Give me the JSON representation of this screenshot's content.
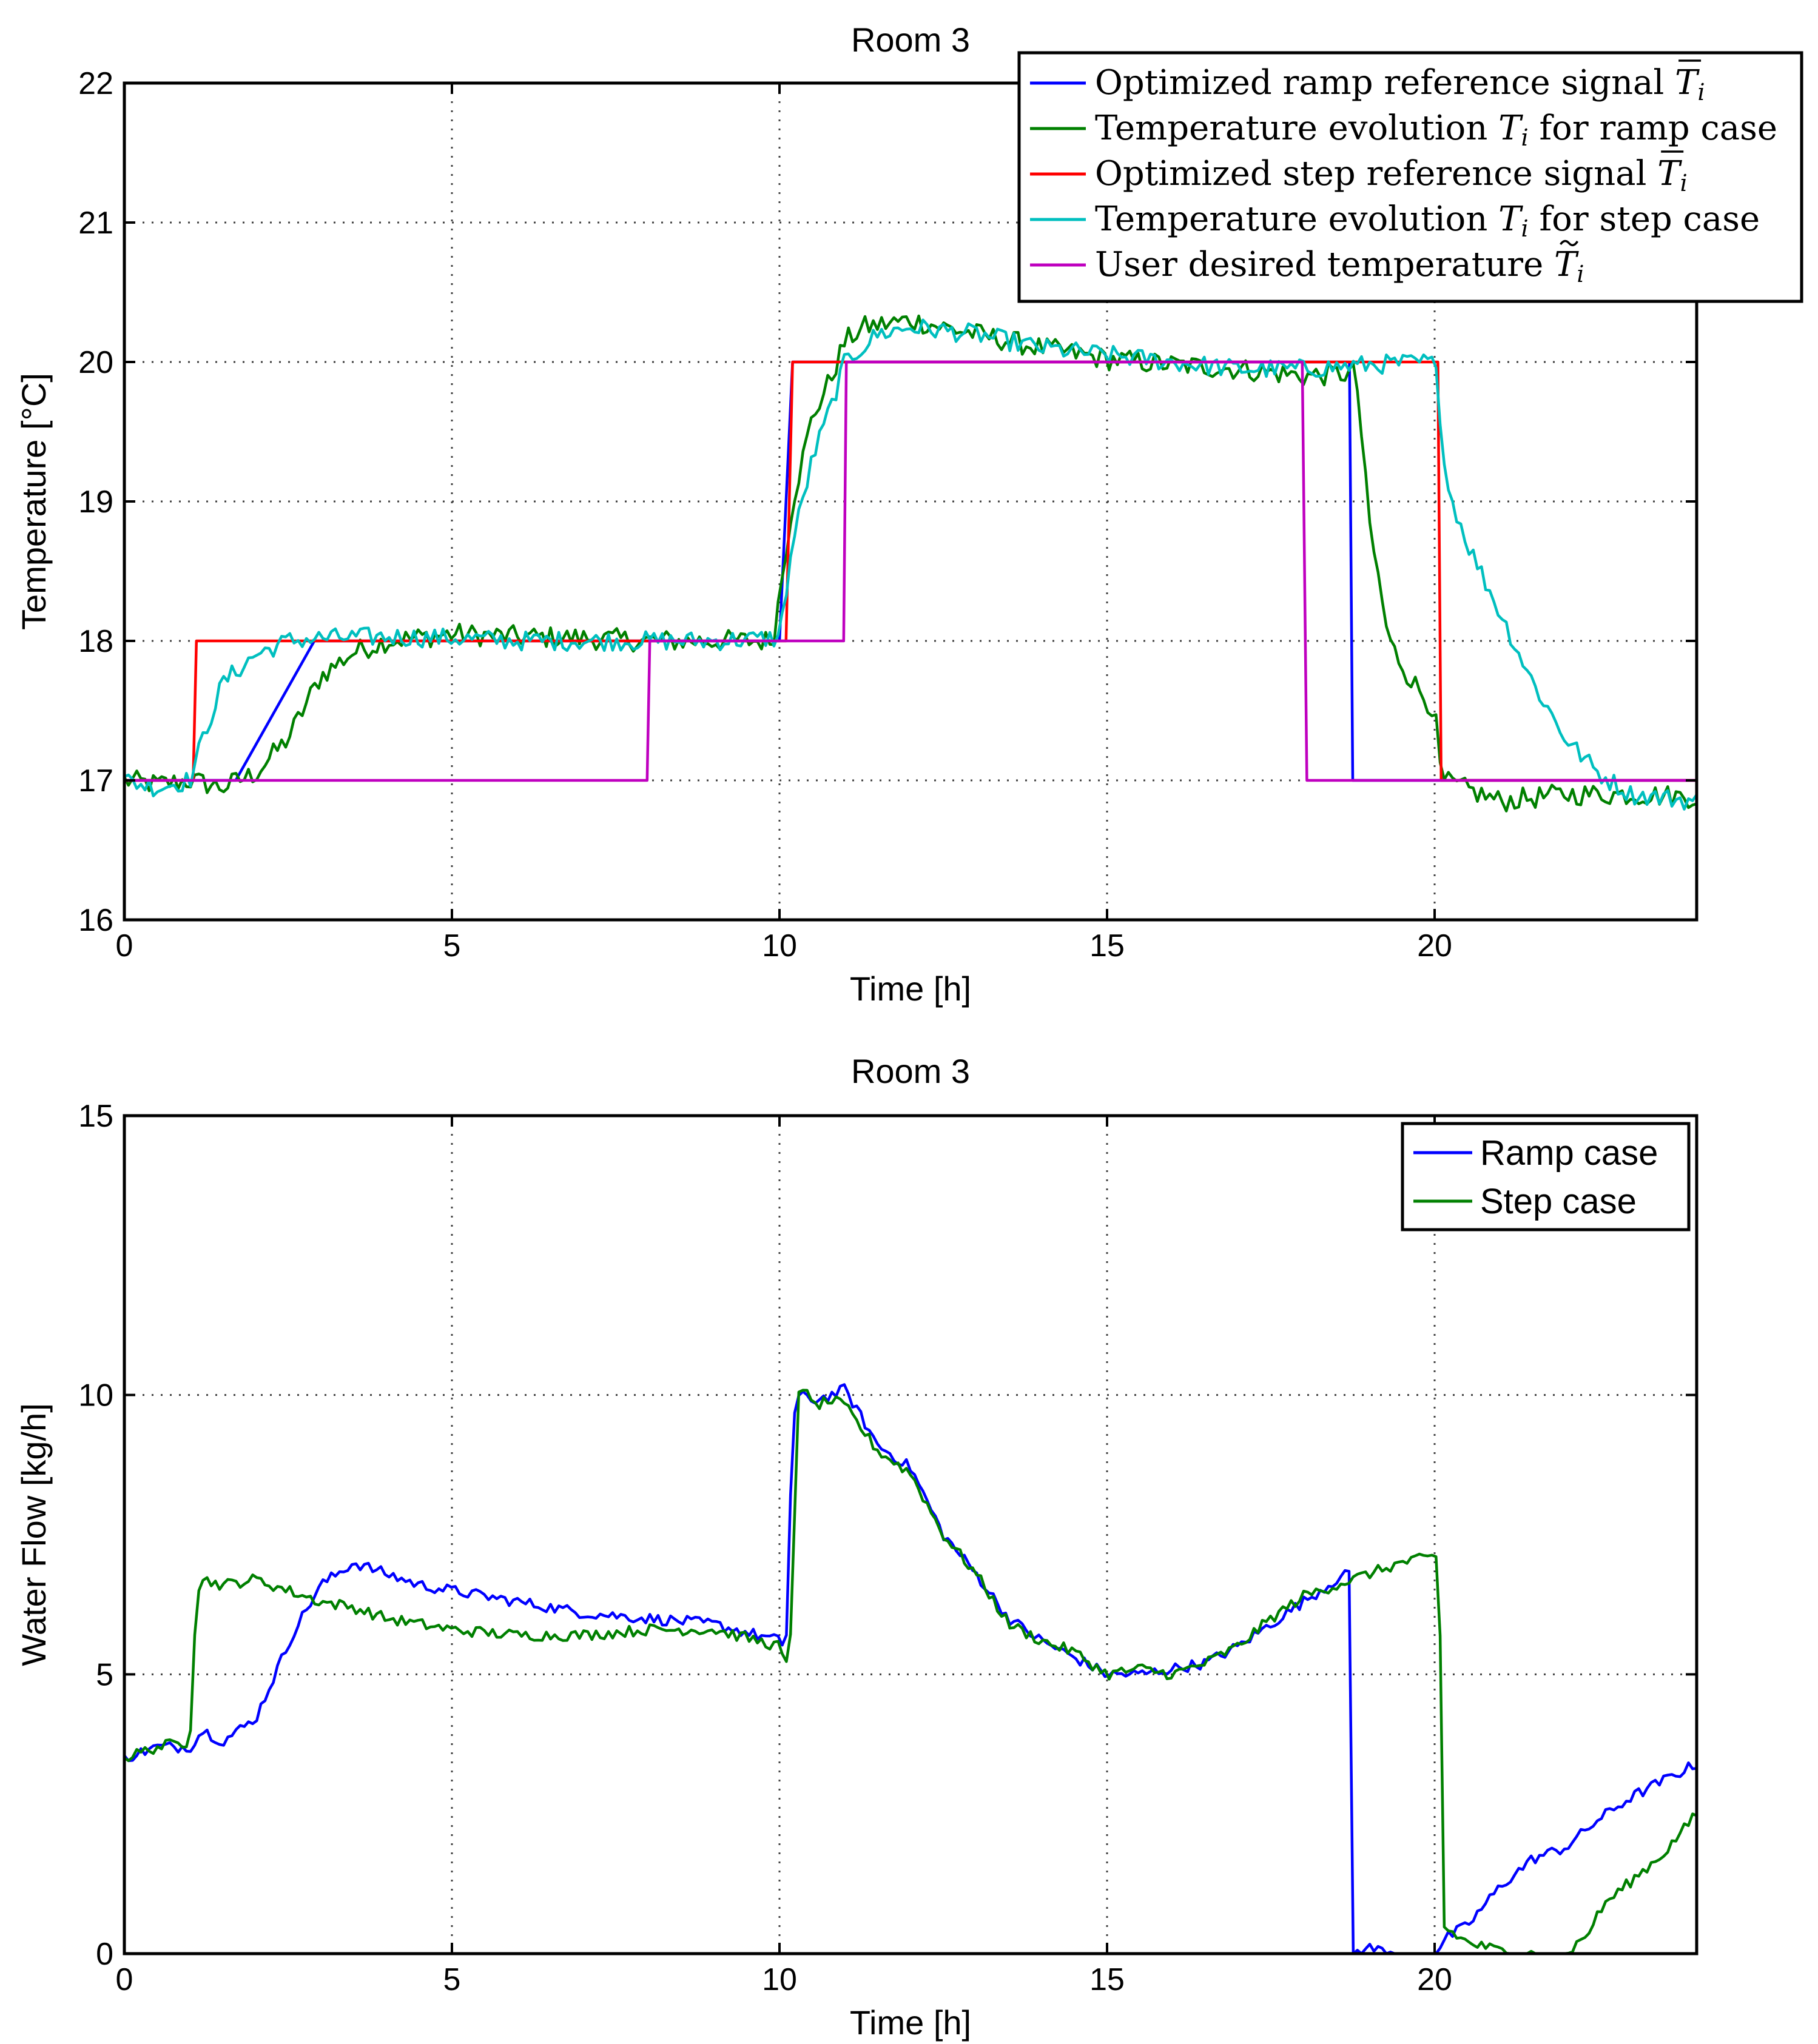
{
  "chart_data": [
    {
      "type": "line",
      "title": "Room 3",
      "xlabel": "Time [h]",
      "ylabel": "Temperature [°C]",
      "xlim": [
        0,
        24
      ],
      "ylim": [
        16,
        22
      ],
      "xticks": [
        0,
        5,
        10,
        15,
        20
      ],
      "yticks": [
        16,
        17,
        18,
        19,
        20,
        21,
        22
      ],
      "grid": true,
      "legend_position": "top-right",
      "series": [
        {
          "name": "Optimized ramp reference signal T̄ᵢ",
          "label_parts": [
            "Optimized ramp reference signal ",
            "T",
            "i"
          ],
          "label_accent": "bar",
          "color": "#0000ff",
          "noise": 0,
          "x": [
            0,
            1.7,
            2.9,
            10,
            10.2,
            18.7,
            18.75,
            24
          ],
          "y": [
            17,
            17,
            18,
            18,
            20,
            20,
            17,
            17
          ]
        },
        {
          "name": "Temperature evolution Tᵢ for ramp case",
          "label_parts": [
            "Temperature evolution ",
            "T",
            "i",
            " for ramp case"
          ],
          "label_accent": "",
          "color": "#008000",
          "noise": 0.08,
          "x": [
            0,
            0.5,
            1,
            1.5,
            2,
            2.5,
            3,
            3.5,
            4,
            5,
            6,
            7,
            8,
            9,
            9.9,
            10.2,
            10.5,
            10.8,
            11,
            11.3,
            12,
            13,
            14,
            15,
            16,
            17,
            18,
            18.8,
            19,
            19.3,
            19.6,
            20,
            20.1,
            21,
            22,
            23,
            24
          ],
          "y": [
            17,
            16.97,
            17,
            16.95,
            17.05,
            17.3,
            17.75,
            17.92,
            18,
            18.05,
            18.03,
            18.02,
            18,
            18,
            18,
            19.0,
            19.6,
            19.9,
            20.15,
            20.25,
            20.3,
            20.2,
            20.1,
            20.02,
            19.98,
            19.95,
            19.9,
            19.92,
            18.85,
            18.0,
            17.75,
            17.5,
            17.0,
            16.85,
            16.9,
            16.9,
            16.88
          ]
        },
        {
          "name": "Optimized step reference signal T̄ᵢ",
          "label_parts": [
            "Optimized step reference signal ",
            "T",
            "i"
          ],
          "label_accent": "bar",
          "color": "#ff0000",
          "noise": 0,
          "x": [
            0,
            1.05,
            1.1,
            10.1,
            10.2,
            20.05,
            20.1,
            24
          ],
          "y": [
            17,
            17,
            18,
            18,
            20,
            20,
            17,
            17
          ]
        },
        {
          "name": "Temperature evolution Tᵢ for step case",
          "label_parts": [
            "Temperature evolution ",
            "T",
            "i",
            " for step case"
          ],
          "label_accent": "",
          "color": "#00bfbf",
          "noise": 0.07,
          "x": [
            0,
            0.5,
            1,
            1.2,
            1.5,
            2,
            2.5,
            3,
            4,
            5,
            6,
            7,
            8,
            9,
            10,
            10.2,
            10.5,
            10.8,
            11,
            11.5,
            12,
            13,
            14,
            15,
            16,
            17,
            18,
            19,
            20,
            20.2,
            20.5,
            21,
            21.5,
            22,
            22.5,
            23,
            24
          ],
          "y": [
            17,
            16.95,
            17,
            17.3,
            17.7,
            17.9,
            18,
            18.02,
            18.03,
            18.02,
            18,
            18,
            18,
            18,
            18.02,
            18.7,
            19.3,
            19.7,
            20.0,
            20.2,
            20.25,
            20.2,
            20.1,
            20.05,
            20.0,
            19.95,
            19.95,
            19.98,
            20.0,
            19.1,
            18.7,
            18.2,
            17.7,
            17.3,
            17.05,
            16.9,
            16.85
          ]
        },
        {
          "name": "User desired temperature T̃ᵢ",
          "label_parts": [
            "User desired temperature ",
            "T",
            "i"
          ],
          "label_accent": "tilde",
          "color": "#bf00bf",
          "noise": 0,
          "x": [
            0,
            7.98,
            8.02,
            10.98,
            11.02,
            17.98,
            18.05,
            24
          ],
          "y": [
            17,
            17,
            18,
            18,
            20,
            20,
            17,
            17
          ]
        }
      ]
    },
    {
      "type": "line",
      "title": "Room 3",
      "xlabel": "Time [h]",
      "ylabel": "Water Flow [kg/h]",
      "xlim": [
        0,
        24
      ],
      "ylim": [
        0,
        15
      ],
      "xticks": [
        0,
        5,
        10,
        15,
        20
      ],
      "yticks": [
        0,
        5,
        10,
        15
      ],
      "grid": true,
      "legend_position": "top-right",
      "series": [
        {
          "name": "Ramp case",
          "color": "#0000ff",
          "noise": 0.1,
          "x": [
            0,
            0.5,
            1,
            1.2,
            1.5,
            2,
            2.3,
            2.6,
            3,
            3.5,
            4,
            4.5,
            5,
            6,
            7,
            8,
            9,
            10,
            10.1,
            10.2,
            10.3,
            10.5,
            10.8,
            11,
            11.5,
            12,
            12.5,
            13,
            13.5,
            14,
            14.5,
            15,
            15.5,
            16,
            16.5,
            17,
            17.5,
            18,
            18.5,
            18.7,
            18.75,
            19,
            19.5,
            20,
            20.2,
            20.5,
            21,
            21.5,
            22,
            22.5,
            23,
            23.5,
            24
          ],
          "y": [
            3.5,
            3.7,
            3.7,
            4.0,
            3.8,
            4.2,
            5.0,
            5.8,
            6.6,
            7.0,
            6.8,
            6.6,
            6.5,
            6.3,
            6.1,
            6.0,
            5.9,
            5.6,
            5.5,
            9.5,
            10.0,
            9.9,
            10.0,
            10.1,
            9.1,
            8.7,
            7.5,
            6.8,
            6.0,
            5.6,
            5.3,
            5.0,
            5.0,
            5.1,
            5.2,
            5.5,
            5.9,
            6.3,
            6.7,
            6.8,
            0,
            0.1,
            0,
            0,
            0.3,
            0.5,
            1.2,
            1.7,
            1.9,
            2.4,
            2.8,
            3.1,
            3.4
          ]
        },
        {
          "name": "Step case",
          "color": "#008000",
          "noise": 0.1,
          "x": [
            0,
            0.5,
            1,
            1.1,
            1.2,
            1.5,
            2,
            2.5,
            3,
            3.5,
            4,
            5,
            6,
            7,
            8,
            9,
            10,
            10.15,
            10.3,
            10.5,
            10.8,
            11,
            11.5,
            12,
            12.5,
            13,
            13.5,
            14,
            14.5,
            15,
            15.5,
            16,
            16.5,
            17,
            17.5,
            18,
            18.5,
            19,
            19.5,
            20,
            20.08,
            20.1,
            20.5,
            21,
            21.5,
            22,
            22.3,
            22.6,
            23,
            23.5,
            24
          ],
          "y": [
            3.5,
            3.7,
            3.8,
            6.5,
            6.7,
            6.6,
            6.7,
            6.5,
            6.3,
            6.2,
            6.0,
            5.8,
            5.7,
            5.7,
            5.8,
            5.8,
            5.5,
            5.0,
            10.3,
            9.8,
            9.9,
            9.8,
            9.0,
            8.6,
            7.5,
            6.8,
            5.9,
            5.6,
            5.4,
            5.0,
            5.1,
            5.0,
            5.2,
            5.5,
            6.0,
            6.4,
            6.6,
            6.8,
            7.0,
            7.1,
            7.1,
            0.5,
            0.2,
            0.05,
            0,
            0,
            0.3,
            0.9,
            1.3,
            1.8,
            2.5
          ]
        }
      ]
    }
  ]
}
